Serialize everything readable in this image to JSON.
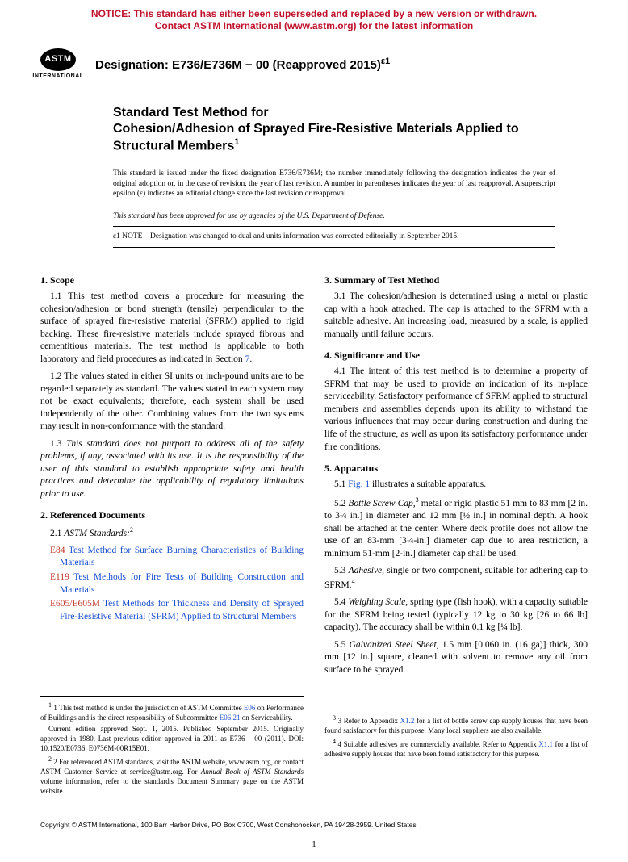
{
  "colors": {
    "notice": "#c0122c",
    "link": "#1a4fce",
    "refcode": "#c0392b",
    "text": "#000000",
    "bg": "#ffffff"
  },
  "notice": {
    "line1": "NOTICE: This standard has either been superseded and replaced by a new version or withdrawn.",
    "line2": "Contact ASTM International (www.astm.org) for the latest information"
  },
  "logo_sub": "INTERNATIONAL",
  "designation": "Designation: E736/E736M − 00 (Reapproved 2015)",
  "designation_sup": "ε1",
  "title_lead": "Standard Test Method for",
  "title_main": "Cohesion/Adhesion of Sprayed Fire-Resistive Materials Applied to Structural Members",
  "title_sup": "1",
  "issuance": "This standard is issued under the fixed designation E736/E736M; the number immediately following the designation indicates the year of original adoption or, in the case of revision, the year of last revision. A number in parentheses indicates the year of last reapproval. A superscript epsilon (ε) indicates an editorial change since the last revision or reapproval.",
  "dod": "This standard has been approved for use by agencies of the U.S. Department of Defense.",
  "eps_note_label": "ε1",
  "eps_note": " NOTE—Designation was changed to dual and units information was corrected editorially in September 2015.",
  "sec1": {
    "head": "1. Scope",
    "p1": "1.1 This test method covers a procedure for measuring the cohesion/adhesion or bond strength (tensile) perpendicular to the surface of sprayed fire-resistive material (SFRM) applied to rigid backing. These fire-resistive materials include sprayed fibrous and cementitious materials. The test method is applicable to both laboratory and field procedures as indicated in Section ",
    "p1_link": "7",
    "p1_tail": ".",
    "p2": "1.2 The values stated in either SI units or inch-pound units are to be regarded separately as standard. The values stated in each system may not be exact equivalents; therefore, each system shall be used independently of the other. Combining values from the two systems may result in non-conformance with the standard.",
    "p3": "1.3 This standard does not purport to address all of the safety problems, if any, associated with its use. It is the responsibility of the user of this standard to establish appropriate safety and health practices and determine the applicability of regulatory limitations prior to use."
  },
  "sec2": {
    "head": "2. Referenced Documents",
    "lead": "2.1 ",
    "lead_i": "ASTM Standards:",
    "lead_sup": "2",
    "refs": [
      {
        "code": "E84",
        "text": " Test Method for Surface Burning Characteristics of Building Materials"
      },
      {
        "code": "E119",
        "text": " Test Methods for Fire Tests of Building Construction and Materials"
      },
      {
        "code": "E605/E605M",
        "text": " Test Methods for Thickness and Density of Sprayed Fire-Resistive Material (SFRM) Applied to Structural Members"
      }
    ]
  },
  "sec3": {
    "head": "3. Summary of Test Method",
    "p1": "3.1 The cohesion/adhesion is determined using a metal or plastic cap with a hook attached. The cap is attached to the SFRM with a suitable adhesive. An increasing load, measured by a scale, is applied manually until failure occurs."
  },
  "sec4": {
    "head": "4. Significance and Use",
    "p1": "4.1 The intent of this test method is to determine a property of SFRM that may be used to provide an indication of its in-place serviceability. Satisfactory performance of SFRM applied to structural members and assemblies depends upon its ability to withstand the various influences that may occur during construction and during the life of the structure, as well as upon its satisfactory performance under fire conditions."
  },
  "sec5": {
    "head": "5. Apparatus",
    "p1a": "5.1 ",
    "p1_link": "Fig. 1",
    "p1b": " illustrates a suitable apparatus.",
    "p2a": "5.2 ",
    "p2_i": "Bottle Screw Cap,",
    "p2_sup": "3",
    "p2b": " metal or rigid plastic 51 mm to 83 mm [2 in. to 3¼ in.] in diameter and 12 mm [½ in.] in nominal depth. A hook shall be attached at the center. Where deck profile does not allow the use of an 83-mm [3¼-in.] diameter cap due to area restriction, a minimum 51-mm [2-in.] diameter cap shall be used.",
    "p3a": "5.3 ",
    "p3_i": "Adhesive,",
    "p3b": " single or two component, suitable for adhering cap to SFRM.",
    "p3_sup": "4",
    "p4a": "5.4 ",
    "p4_i": "Weighing Scale,",
    "p4b": " spring type (fish hook), with a capacity suitable for the SFRM being tested (typically 12 kg to 30 kg [26 to 66 lb] capacity). The accuracy shall be within 0.1 kg [¼ lb].",
    "p5a": "5.5 ",
    "p5_i": "Galvanized Steel Sheet,",
    "p5b": " 1.5 mm [0.060 in. (16 ga)] thick, 300 mm [12 in.] square, cleaned with solvent to remove any oil from surface to be sprayed."
  },
  "foot_left": {
    "f1a": "1 This test method is under the jurisdiction of ASTM Committee ",
    "f1_link1": "E06",
    "f1b": " on Performance of Buildings and is the direct responsibility of Subcommittee ",
    "f1_link2": "E06.21",
    "f1c": " on Serviceability.",
    "f1d": "Current edition approved Sept. 1, 2015. Published September 2015. Originally approved in 1980. Last previous edition approved in 2011 as E736 – 00 (2011). DOI: 10.1520/E0736_E0736M-00R15E01.",
    "f2a": "2 For referenced ASTM standards, visit the ASTM website, www.astm.org, or contact ASTM Customer Service at service@astm.org. For ",
    "f2_i": "Annual Book of ASTM Standards",
    "f2b": " volume information, refer to the standard's Document Summary page on the ASTM website."
  },
  "foot_right": {
    "f3a": "3 Refer to Appendix ",
    "f3_link": "X1.2",
    "f3b": " for a list of bottle screw cap supply houses that have been found satisfactory for this purpose. Many local suppliers are also available.",
    "f4a": "4 Suitable adhesives are commercially available. Refer to Appendix ",
    "f4_link": "X1.1",
    "f4b": " for a list of adhesive supply houses that have been found satisfactory for this purpose."
  },
  "copyright": "Copyright © ASTM International, 100 Barr Harbor Drive, PO Box C700, West Conshohocken, PA 19428-2959. United States",
  "pagenum": "1"
}
